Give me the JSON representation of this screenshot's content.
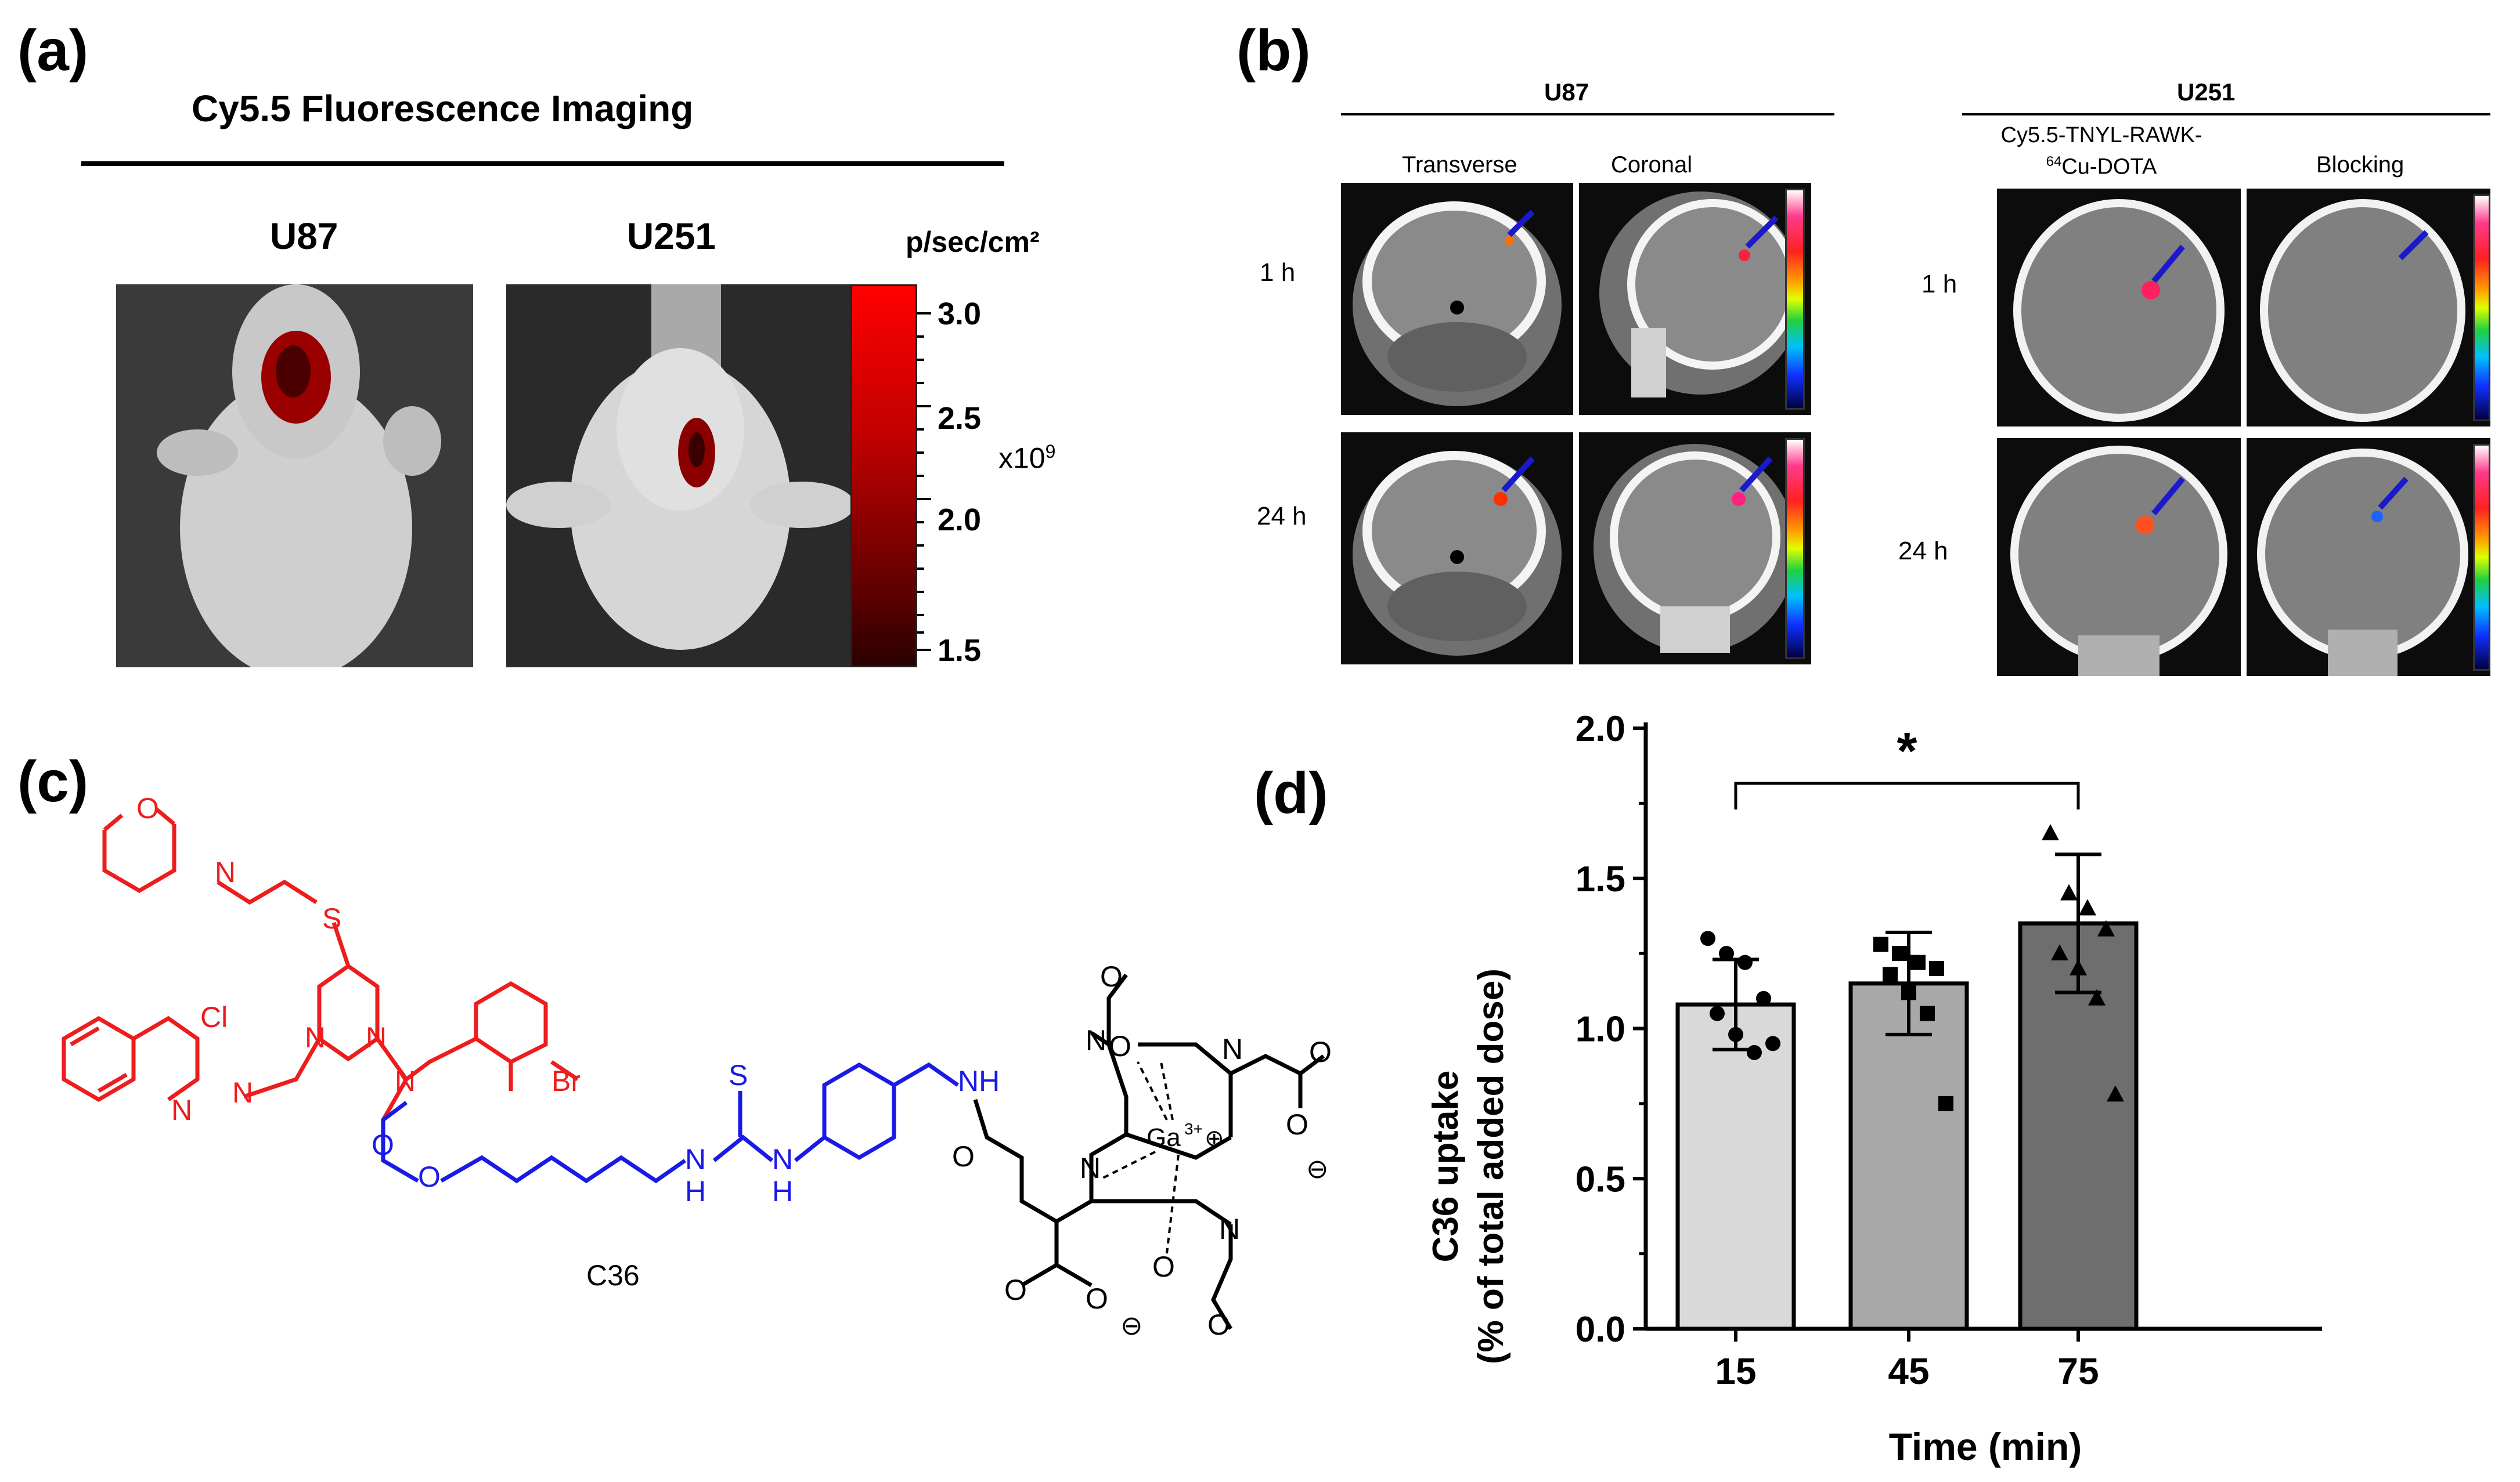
{
  "panel_a": {
    "label": "(a)",
    "title": "Cy5.5 Fluorescence Imaging",
    "image_labels": [
      "U87",
      "U251"
    ],
    "colorbar": {
      "unit": "p/sec/cm²",
      "ticks": [
        "3.0",
        "2.5",
        "2.0",
        "1.5"
      ],
      "multiplier_base": "x10",
      "multiplier_exp": "9",
      "colors": [
        "#ff0000",
        "#2a0000"
      ]
    }
  },
  "panel_b": {
    "label": "(b)",
    "group_left": "U87",
    "group_right": "U251",
    "left_columns": [
      "Transverse",
      "Coronal"
    ],
    "right_col1_line1": "Cy5.5-TNYL-RAWK-",
    "right_col1_line2_sup": "64",
    "right_col1_line2": "Cu-DOTA",
    "right_col2": "Blocking",
    "rows": [
      "1 h",
      "24 h"
    ],
    "arrow_color": "#1a1acc"
  },
  "panel_c": {
    "label": "(c)",
    "compound": "C36",
    "atoms": {
      "O": "O",
      "N": "N",
      "S": "S",
      "Cl": "Cl",
      "Br": "Br",
      "H": "H",
      "NH": "NH",
      "Ga": "Ga",
      "Ga_sup": "3+",
      "plus": "⊕",
      "minus": "⊖"
    },
    "colors": {
      "head": "#ee1c1c",
      "linker": "#1a1ae6",
      "chelator": "#000000"
    }
  },
  "panel_d": {
    "label": "(d)"
  },
  "chart_data": {
    "type": "bar",
    "categories": [
      "15",
      "45",
      "75"
    ],
    "values": [
      1.08,
      1.15,
      1.35
    ],
    "errors": [
      0.15,
      0.17,
      0.23
    ],
    "points": [
      [
        1.3,
        1.25,
        1.22,
        1.1,
        1.05,
        0.98,
        0.92,
        0.95
      ],
      [
        1.28,
        1.25,
        1.22,
        1.2,
        1.18,
        1.12,
        1.05,
        0.75
      ],
      [
        1.65,
        1.45,
        1.4,
        1.33,
        1.25,
        1.2,
        1.1,
        0.78
      ]
    ],
    "markers": [
      "circle",
      "square",
      "triangle"
    ],
    "bar_colors": [
      "#d9d9d9",
      "#a8a8a8",
      "#6e6e6e"
    ],
    "xlabel": "Time (min)",
    "ylabel_line1": "C36 uptake",
    "ylabel_line2": "(% of total added dose)",
    "yticks": [
      "0.0",
      "0.5",
      "1.0",
      "1.5",
      "2.0"
    ],
    "ylim": [
      0,
      2.0
    ],
    "significance": {
      "from": "15",
      "to": "75",
      "label": "*"
    },
    "grid": false
  }
}
